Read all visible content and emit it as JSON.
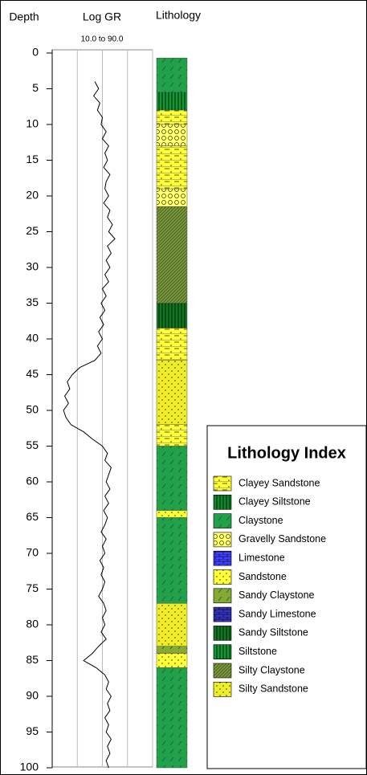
{
  "chart_data": {
    "type": "well-log",
    "headers": {
      "depth": "Depth",
      "log": "Log GR",
      "lithology": "Lithology",
      "range": "10.0 to 90.0"
    },
    "xlim": [
      10,
      90
    ],
    "xticks": [
      10,
      30,
      50,
      70,
      90
    ],
    "grid": true,
    "color": "#000000",
    "ylim": [
      0,
      100
    ],
    "yticks": [
      0,
      5,
      10,
      15,
      20,
      25,
      30,
      35,
      40,
      45,
      50,
      55,
      60,
      65,
      70,
      75,
      80,
      85,
      90,
      95,
      100
    ],
    "depth": [
      4,
      5,
      6,
      7,
      8,
      9,
      10,
      11,
      12,
      13,
      14,
      15,
      16,
      17,
      18,
      19,
      20,
      21,
      22,
      23,
      24,
      25,
      26,
      27,
      28,
      29,
      30,
      31,
      32,
      33,
      34,
      35,
      36,
      37,
      38,
      39,
      40,
      41,
      42,
      43,
      44,
      45,
      46,
      47,
      48,
      49,
      50,
      51,
      52,
      53,
      54,
      55,
      56,
      57,
      58,
      59,
      60,
      61,
      62,
      63,
      64,
      65,
      66,
      67,
      68,
      69,
      70,
      71,
      72,
      73,
      74,
      75,
      76,
      77,
      78,
      79,
      80,
      81,
      82,
      83,
      84,
      85,
      86,
      87,
      88,
      89,
      90,
      91,
      92,
      93,
      94,
      95,
      96,
      97,
      98,
      99,
      100
    ],
    "gr": [
      44,
      47,
      43,
      48,
      46,
      50,
      49,
      53,
      50,
      55,
      52,
      54,
      51,
      56,
      53,
      52,
      55,
      51,
      56,
      54,
      58,
      55,
      60,
      54,
      57,
      53,
      56,
      52,
      55,
      50,
      53,
      49,
      52,
      48,
      51,
      47,
      50,
      46,
      49,
      44,
      32,
      26,
      22,
      24,
      20,
      23,
      19,
      21,
      25,
      35,
      42,
      50,
      54,
      52,
      57,
      55,
      53,
      56,
      52,
      55,
      51,
      54,
      52,
      49,
      53,
      50,
      52,
      48,
      51,
      49,
      52,
      50,
      47,
      51,
      53,
      50,
      52,
      49,
      53,
      47,
      42,
      35,
      45,
      52,
      55,
      53,
      57,
      54,
      56,
      52,
      55,
      53,
      57,
      54,
      56,
      53,
      55
    ],
    "intervals": [
      {
        "top": 0.7,
        "base": 5.5,
        "lithology": "Claystone"
      },
      {
        "top": 5.5,
        "base": 8,
        "lithology": "Siltstone"
      },
      {
        "top": 8,
        "base": 10,
        "lithology": "Clayey Sandstone"
      },
      {
        "top": 10,
        "base": 13,
        "lithology": "Gravelly Sandstone"
      },
      {
        "top": 13,
        "base": 19,
        "lithology": "Clayey Sandstone"
      },
      {
        "top": 19,
        "base": 21.5,
        "lithology": "Gravelly Sandstone"
      },
      {
        "top": 21.5,
        "base": 35,
        "lithology": "Silty Claystone"
      },
      {
        "top": 35,
        "base": 38.5,
        "lithology": "Sandy Siltstone"
      },
      {
        "top": 38.5,
        "base": 43,
        "lithology": "Clayey Sandstone"
      },
      {
        "top": 43,
        "base": 52,
        "lithology": "Silty Sandstone"
      },
      {
        "top": 52,
        "base": 55,
        "lithology": "Clayey Sandstone"
      },
      {
        "top": 55,
        "base": 64,
        "lithology": "Claystone"
      },
      {
        "top": 64,
        "base": 65,
        "lithology": "Sandstone"
      },
      {
        "top": 65,
        "base": 77,
        "lithology": "Claystone"
      },
      {
        "top": 77,
        "base": 83,
        "lithology": "Silty Sandstone"
      },
      {
        "top": 83,
        "base": 84,
        "lithology": "Sandy Claystone"
      },
      {
        "top": 84,
        "base": 86,
        "lithology": "Sandstone"
      },
      {
        "top": 86,
        "base": 100,
        "lithology": "Claystone"
      }
    ],
    "legend": {
      "title": "Lithology Index",
      "items": [
        {
          "name": "Clayey Sandstone",
          "color": "#ffff33"
        },
        {
          "name": "Clayey Siltstone",
          "color": "#0a8a2a"
        },
        {
          "name": "Claystone",
          "color": "#22a04a"
        },
        {
          "name": "Gravelly Sandstone",
          "color": "#ffff66"
        },
        {
          "name": "Limestone",
          "color": "#4040ff"
        },
        {
          "name": "Sandstone",
          "color": "#ffff33"
        },
        {
          "name": "Sandy Claystone",
          "color": "#88aa33"
        },
        {
          "name": "Sandy Limestone",
          "color": "#3333bb"
        },
        {
          "name": "Sandy Siltstone",
          "color": "#117722"
        },
        {
          "name": "Siltstone",
          "color": "#119933"
        },
        {
          "name": "Silty Claystone",
          "color": "#779933"
        },
        {
          "name": "Silty Sandstone",
          "color": "#eeee22"
        }
      ]
    }
  }
}
